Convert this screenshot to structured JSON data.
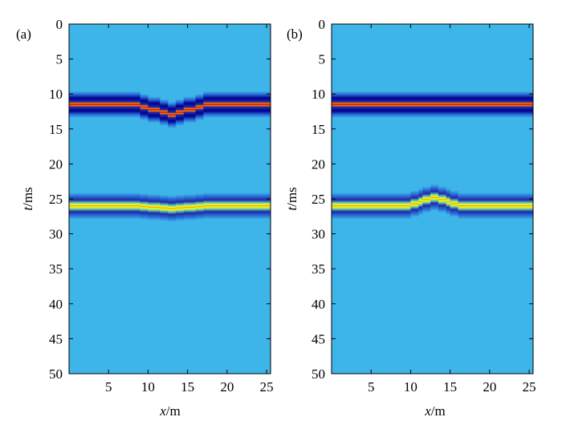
{
  "colors": {
    "background": "#3eb5e8",
    "frame": "#000000",
    "colormap": [
      "#00008f",
      "#1d2aa9",
      "#2a6bd6",
      "#3eb5e8",
      "#7fe0a0",
      "#ffff00",
      "#ff8000",
      "#e00000",
      "#800000"
    ]
  },
  "chart_data": [
    {
      "type": "heatmap",
      "panel_label": "(a)",
      "xlabel_var": "x",
      "xlabel_unit": "/m",
      "ylabel_var": "t",
      "ylabel_unit": "/ms",
      "xlim": [
        0,
        25.5
      ],
      "ylim": [
        50,
        0
      ],
      "y_axis_reversed": true,
      "xticks": [
        5,
        10,
        15,
        20,
        25
      ],
      "yticks": [
        0,
        5,
        10,
        15,
        20,
        25,
        30,
        35,
        40,
        45,
        50
      ],
      "xtick_labels": [
        "5",
        "10",
        "15",
        "20",
        "25"
      ],
      "ytick_labels": [
        "0",
        "5",
        "10",
        "15",
        "20",
        "25",
        "30",
        "35",
        "40",
        "45",
        "50"
      ],
      "grid": false,
      "events": [
        {
          "polarity": "positive",
          "peak_color": "#e00000",
          "baseline_t": 11.5,
          "anomaly": {
            "x_center": 13,
            "half_width": 4.5,
            "amplitude_ms": 1.5,
            "direction": "down"
          }
        },
        {
          "polarity": "negative",
          "peak_color": "#ffff00",
          "baseline_t": 26,
          "anomaly": {
            "x_center": 13,
            "half_width": 4.5,
            "amplitude_ms": 0.4,
            "direction": "down"
          }
        }
      ]
    },
    {
      "type": "heatmap",
      "panel_label": "(b)",
      "xlabel_var": "x",
      "xlabel_unit": "/m",
      "ylabel_var": "t",
      "ylabel_unit": "/ms",
      "xlim": [
        0,
        25.5
      ],
      "ylim": [
        50,
        0
      ],
      "y_axis_reversed": true,
      "xticks": [
        5,
        10,
        15,
        20,
        25
      ],
      "yticks": [
        0,
        5,
        10,
        15,
        20,
        25,
        30,
        35,
        40,
        45,
        50
      ],
      "xtick_labels": [
        "5",
        "10",
        "15",
        "20",
        "25"
      ],
      "ytick_labels": [
        "0",
        "5",
        "10",
        "15",
        "20",
        "25",
        "30",
        "35",
        "40",
        "45",
        "50"
      ],
      "grid": false,
      "events": [
        {
          "polarity": "positive",
          "peak_color": "#e00000",
          "baseline_t": 11.5,
          "anomaly": null
        },
        {
          "polarity": "negative",
          "peak_color": "#ffff00",
          "baseline_t": 26,
          "anomaly": {
            "x_center": 13,
            "half_width": 3.5,
            "amplitude_ms": 1.2,
            "direction": "up"
          }
        }
      ]
    }
  ]
}
